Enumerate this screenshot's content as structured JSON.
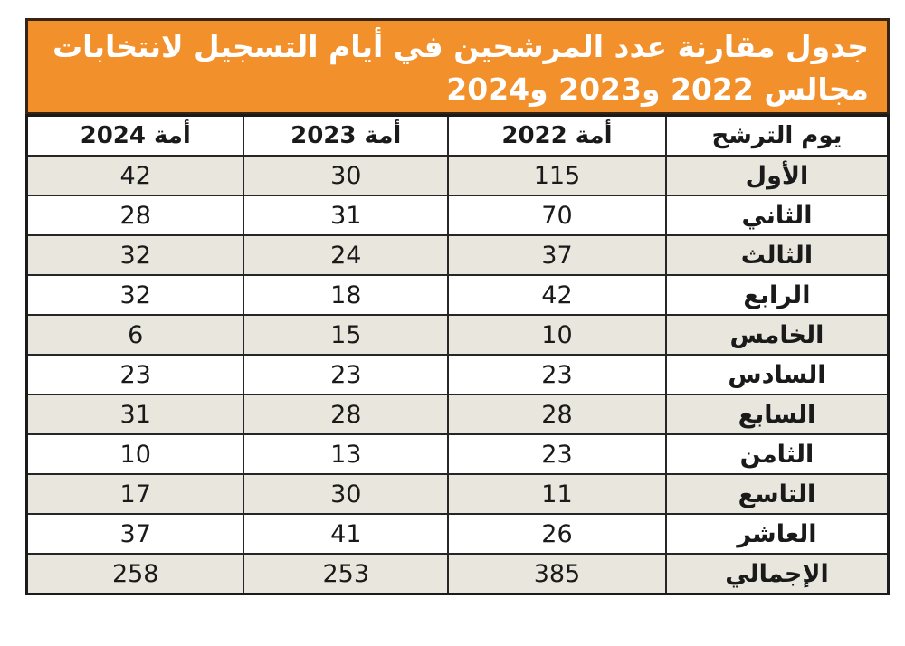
{
  "title": {
    "line1": "جدول مقارنة عدد المرشحين في أيام التسجيل لانتخابات",
    "line2": "مجالس 2022 و2023 و2024"
  },
  "colors": {
    "accent_orange": "#F2902C",
    "title_text": "#FFFFFF",
    "row_shade": "#E9E6DD",
    "border_dark": "#1B1B1B"
  },
  "table": {
    "headers": {
      "day": "يوم الترشح",
      "y2022": "أمة 2022",
      "y2023": "أمة 2023",
      "y2024": "أمة 2024"
    },
    "rows": [
      {
        "day": "الأول",
        "y2022": "115",
        "y2023": "30",
        "y2024": "42"
      },
      {
        "day": "الثاني",
        "y2022": "70",
        "y2023": "31",
        "y2024": "28"
      },
      {
        "day": "الثالث",
        "y2022": "37",
        "y2023": "24",
        "y2024": "32"
      },
      {
        "day": "الرابع",
        "y2022": "42",
        "y2023": "18",
        "y2024": "32"
      },
      {
        "day": "الخامس",
        "y2022": "10",
        "y2023": "15",
        "y2024": "6"
      },
      {
        "day": "السادس",
        "y2022": "23",
        "y2023": "23",
        "y2024": "23"
      },
      {
        "day": "السابع",
        "y2022": "28",
        "y2023": "28",
        "y2024": "31"
      },
      {
        "day": "الثامن",
        "y2022": "23",
        "y2023": "13",
        "y2024": "10"
      },
      {
        "day": "التاسع",
        "y2022": "11",
        "y2023": "30",
        "y2024": "17"
      },
      {
        "day": "العاشر",
        "y2022": "26",
        "y2023": "41",
        "y2024": "37"
      },
      {
        "day": "الإجمالي",
        "y2022": "385",
        "y2023": "253",
        "y2024": "258"
      }
    ]
  },
  "chart_data": {
    "type": "table",
    "title": "جدول مقارنة عدد المرشحين في أيام التسجيل لانتخابات مجالس 2022 و2023 و2024",
    "categories": [
      "الأول",
      "الثاني",
      "الثالث",
      "الرابع",
      "الخامس",
      "السادس",
      "السابع",
      "الثامن",
      "التاسع",
      "العاشر",
      "الإجمالي"
    ],
    "series": [
      {
        "name": "أمة 2022",
        "values": [
          115,
          70,
          37,
          42,
          10,
          23,
          28,
          23,
          11,
          26,
          385
        ]
      },
      {
        "name": "أمة 2023",
        "values": [
          30,
          31,
          24,
          18,
          15,
          23,
          28,
          13,
          30,
          41,
          253
        ]
      },
      {
        "name": "أمة 2024",
        "values": [
          42,
          28,
          32,
          32,
          6,
          23,
          31,
          10,
          17,
          37,
          258
        ]
      }
    ],
    "layout": "rows are registration days (right column), columns are election years ordered right-to-left: 2022, 2023, 2024; last row is totals"
  }
}
